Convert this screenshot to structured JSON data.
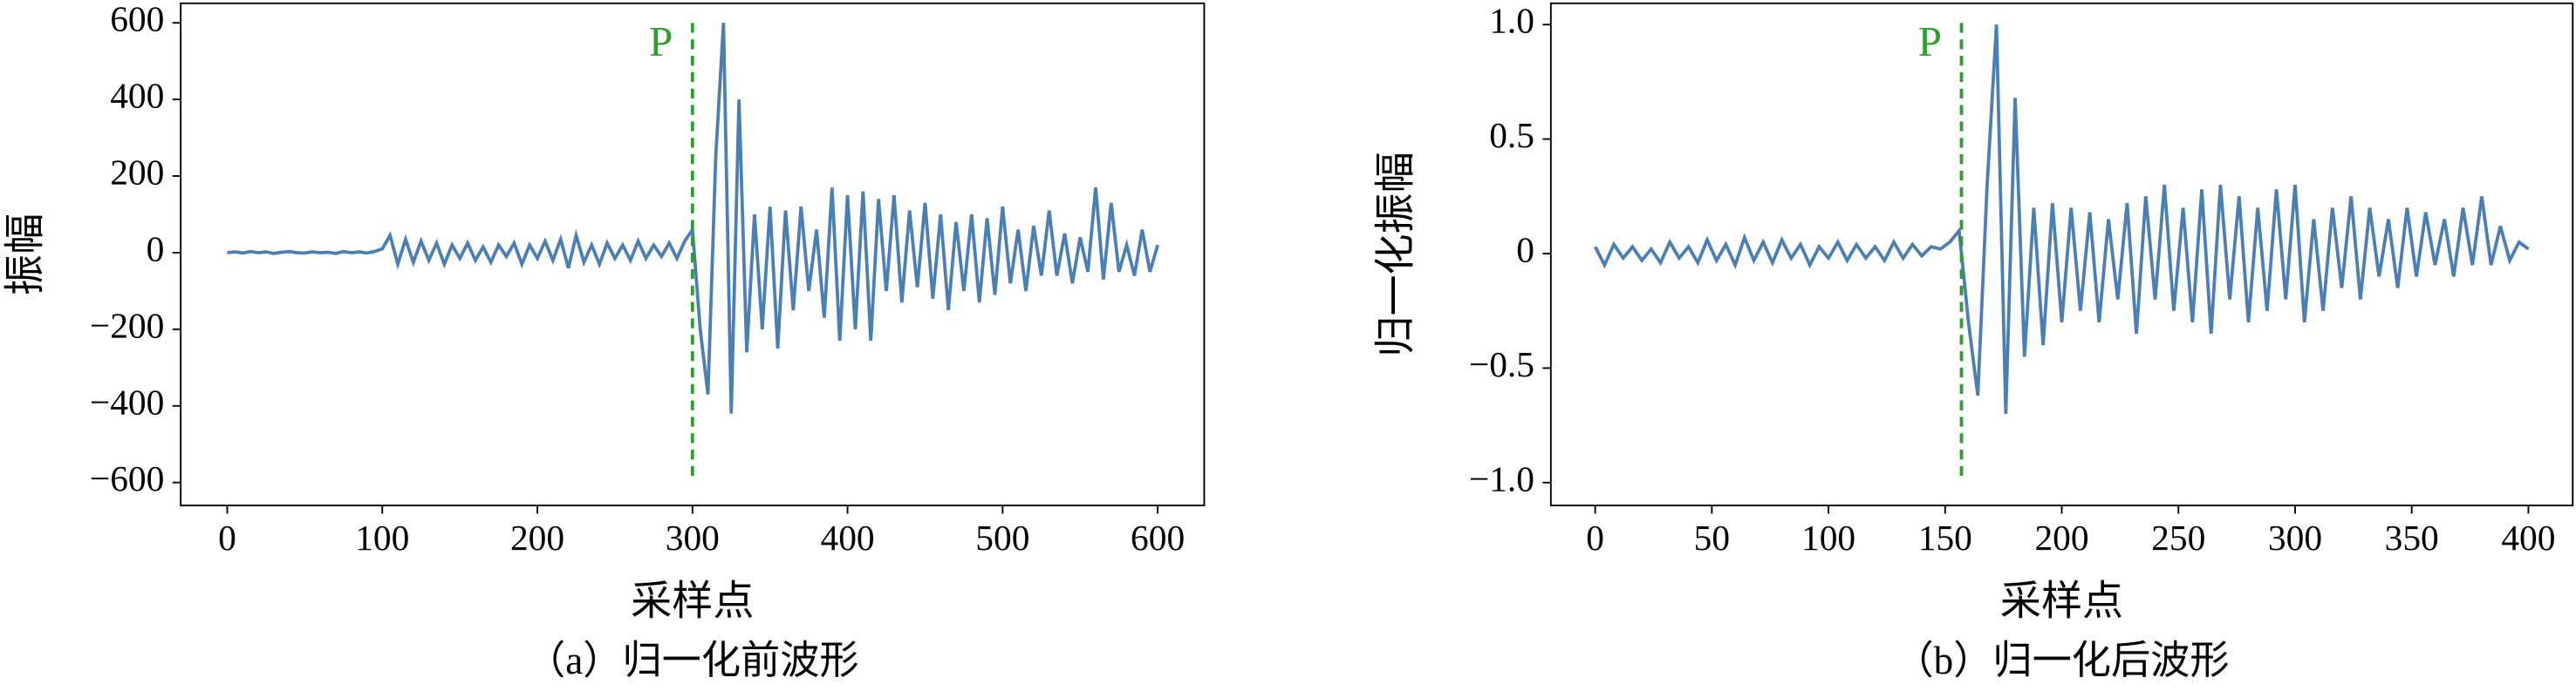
{
  "chart_data": [
    {
      "type": "line",
      "caption": "（a）归一化前波形",
      "xlabel": "采样点",
      "ylabel": "振幅",
      "x": [
        0,
        5,
        10,
        15,
        20,
        25,
        30,
        35,
        40,
        45,
        50,
        55,
        60,
        65,
        70,
        75,
        80,
        85,
        90,
        95,
        100,
        105,
        110,
        115,
        120,
        125,
        130,
        135,
        140,
        145,
        150,
        155,
        160,
        165,
        170,
        175,
        180,
        185,
        190,
        195,
        200,
        205,
        210,
        215,
        220,
        225,
        230,
        235,
        240,
        245,
        250,
        255,
        260,
        265,
        270,
        275,
        280,
        285,
        290,
        295,
        300,
        305,
        310,
        315,
        320,
        325,
        330,
        335,
        340,
        345,
        350,
        355,
        360,
        365,
        370,
        375,
        380,
        385,
        390,
        395,
        400,
        405,
        410,
        415,
        420,
        425,
        430,
        435,
        440,
        445,
        450,
        455,
        460,
        465,
        470,
        475,
        480,
        485,
        490,
        495,
        500,
        505,
        510,
        515,
        520,
        525,
        530,
        535,
        540,
        545,
        550,
        555,
        560,
        565,
        570,
        575,
        580,
        585,
        590,
        595,
        600
      ],
      "series": [
        {
          "color": "#4a7fb5",
          "values": [
            0,
            2,
            -1,
            3,
            0,
            2,
            -2,
            1,
            3,
            0,
            -1,
            2,
            0,
            1,
            -2,
            3,
            0,
            2,
            -1,
            3,
            10,
            45,
            -30,
            35,
            -25,
            30,
            -20,
            25,
            -30,
            20,
            -15,
            25,
            -20,
            15,
            -25,
            20,
            -10,
            25,
            -30,
            20,
            -15,
            30,
            -20,
            35,
            -40,
            45,
            -25,
            20,
            -30,
            25,
            -15,
            20,
            -20,
            30,
            -15,
            20,
            -10,
            25,
            -15,
            30,
            60,
            -200,
            -370,
            250,
            600,
            -420,
            400,
            -260,
            100,
            -200,
            120,
            -250,
            110,
            -150,
            120,
            -100,
            60,
            -170,
            170,
            -230,
            150,
            -200,
            160,
            -230,
            140,
            -100,
            150,
            -130,
            110,
            -90,
            130,
            -120,
            100,
            -150,
            80,
            -100,
            100,
            -130,
            90,
            -110,
            120,
            -80,
            60,
            -100,
            70,
            -60,
            110,
            -60,
            50,
            -80,
            40,
            -50,
            170,
            -70,
            130,
            -50,
            20,
            -60,
            60,
            -50,
            20
          ]
        }
      ],
      "xlim": [
        -30,
        630
      ],
      "ylim": [
        -660,
        651
      ],
      "xticks": [
        0,
        100,
        200,
        300,
        400,
        500,
        600
      ],
      "yticks": [
        {
          "value": -600,
          "label": "−600"
        },
        {
          "value": -400,
          "label": "−400"
        },
        {
          "value": -200,
          "label": "−200"
        },
        0,
        200,
        400,
        600
      ],
      "annotation": {
        "x": 300,
        "label": "P",
        "color": "#2ca02c"
      }
    },
    {
      "type": "line",
      "caption": "（b）归一化后波形",
      "xlabel": "采样点",
      "ylabel": "归一化振幅",
      "x": [
        0,
        4,
        8,
        12,
        16,
        20,
        24,
        28,
        32,
        36,
        40,
        44,
        48,
        52,
        56,
        60,
        64,
        68,
        72,
        76,
        80,
        84,
        88,
        92,
        96,
        100,
        104,
        108,
        112,
        116,
        120,
        124,
        128,
        132,
        136,
        140,
        144,
        148,
        152,
        156,
        160,
        164,
        168,
        172,
        176,
        180,
        184,
        188,
        192,
        196,
        200,
        204,
        208,
        212,
        216,
        220,
        224,
        228,
        232,
        236,
        240,
        244,
        248,
        252,
        256,
        260,
        264,
        268,
        272,
        276,
        280,
        284,
        288,
        292,
        296,
        300,
        304,
        308,
        312,
        316,
        320,
        324,
        328,
        332,
        336,
        340,
        344,
        348,
        352,
        356,
        360,
        364,
        368,
        372,
        376,
        380,
        384,
        388,
        392,
        396,
        400
      ],
      "series": [
        {
          "color": "#4a7fb5",
          "values": [
            0.03,
            -0.05,
            0.04,
            -0.02,
            0.03,
            -0.03,
            0.02,
            -0.04,
            0.05,
            -0.02,
            0.03,
            -0.04,
            0.06,
            -0.03,
            0.04,
            -0.05,
            0.07,
            -0.03,
            0.05,
            -0.04,
            0.06,
            -0.02,
            0.04,
            -0.05,
            0.03,
            -0.02,
            0.05,
            -0.03,
            0.04,
            -0.02,
            0.03,
            -0.03,
            0.05,
            -0.02,
            0.04,
            -0.01,
            0.03,
            0.02,
            0.05,
            0.1,
            -0.3,
            -0.62,
            0.3,
            1.0,
            -0.7,
            0.68,
            -0.45,
            0.2,
            -0.4,
            0.22,
            -0.3,
            0.2,
            -0.25,
            0.18,
            -0.3,
            0.15,
            -0.2,
            0.22,
            -0.35,
            0.25,
            -0.2,
            0.3,
            -0.25,
            0.2,
            -0.3,
            0.28,
            -0.35,
            0.3,
            -0.2,
            0.25,
            -0.3,
            0.2,
            -0.25,
            0.28,
            -0.2,
            0.3,
            -0.3,
            0.15,
            -0.25,
            0.2,
            -0.15,
            0.25,
            -0.2,
            0.2,
            -0.1,
            0.15,
            -0.15,
            0.2,
            -0.1,
            0.18,
            -0.05,
            0.15,
            -0.1,
            0.2,
            -0.05,
            0.25,
            -0.05,
            0.12,
            -0.03,
            0.05,
            0.02
          ]
        }
      ],
      "xlim": [
        -19,
        419
      ],
      "ylim": [
        -1.1,
        1.093
      ],
      "xticks": [
        0,
        50,
        100,
        150,
        200,
        250,
        300,
        350,
        400
      ],
      "yticks": [
        {
          "value": -1.0,
          "label": "−1.0"
        },
        {
          "value": -0.5,
          "label": "−0.5"
        },
        0,
        0.5,
        {
          "value": 1.0,
          "label": "1.0"
        }
      ],
      "annotation": {
        "x": 157,
        "label": "P",
        "color": "#2ca02c"
      }
    }
  ]
}
